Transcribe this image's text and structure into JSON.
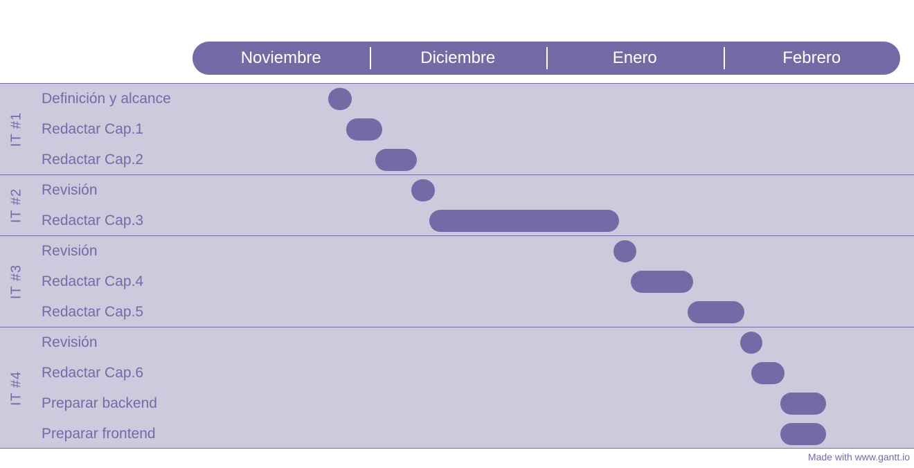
{
  "chart_data": {
    "type": "gantt",
    "months": [
      "Noviembre",
      "Diciembre",
      "Enero",
      "Febrero"
    ],
    "groups": [
      {
        "label": "IT #1",
        "tasks": [
          {
            "name": "Definición y alcance",
            "start": 0.768,
            "end": 0.902
          },
          {
            "name": "Redactar Cap.1",
            "start": 0.867,
            "end": 1.071
          },
          {
            "name": "Redactar Cap.2",
            "start": 1.035,
            "end": 1.267
          }
        ]
      },
      {
        "label": "IT #2",
        "tasks": [
          {
            "name": "Revisión",
            "start": 1.235,
            "end": 1.369
          },
          {
            "name": "Redactar Cap.3",
            "start": 1.337,
            "end": 2.412
          }
        ]
      },
      {
        "label": "IT #3",
        "tasks": [
          {
            "name": "Revisión",
            "start": 2.38,
            "end": 2.51
          },
          {
            "name": "Redactar Cap.4",
            "start": 2.478,
            "end": 2.831
          },
          {
            "name": "Redactar Cap.5",
            "start": 2.799,
            "end": 3.118
          }
        ]
      },
      {
        "label": "IT #4",
        "tasks": [
          {
            "name": "Revisión",
            "start": 3.094,
            "end": 3.22
          },
          {
            "name": "Redactar Cap.6",
            "start": 3.157,
            "end": 3.345
          },
          {
            "name": "Preparar backend",
            "start": 3.322,
            "end": 3.58
          },
          {
            "name": "Preparar frontend",
            "start": 3.322,
            "end": 3.58
          }
        ]
      }
    ]
  },
  "colors": {
    "accent": "#756aa6",
    "band": "#cccadd"
  },
  "footer": {
    "text": "Made with www.gantt.io"
  }
}
